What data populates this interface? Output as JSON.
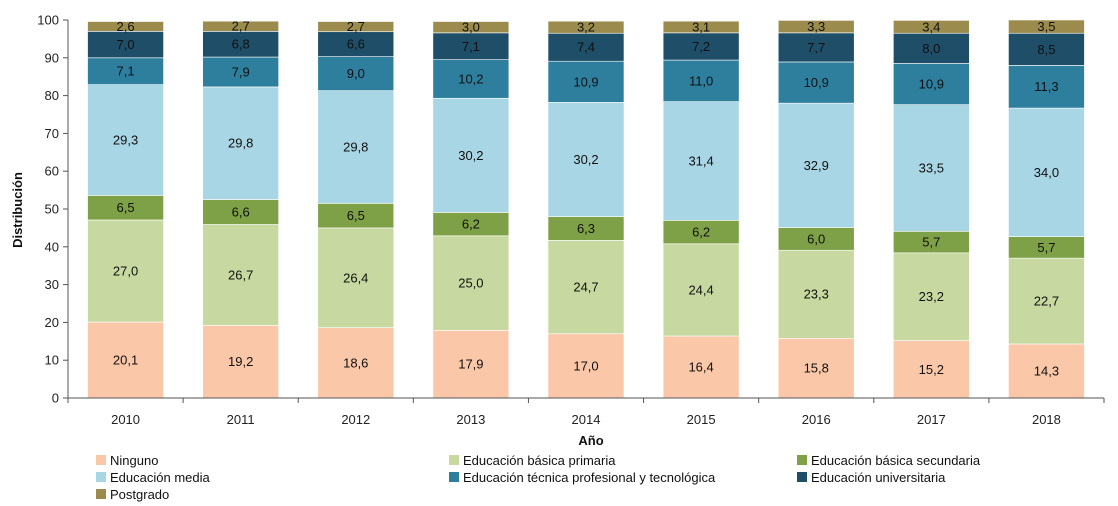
{
  "chart_data": {
    "type": "bar",
    "stacked": true,
    "title": "",
    "xlabel": "Año",
    "ylabel": "Distribución",
    "ylim": [
      0,
      100
    ],
    "yticks": [
      0,
      10,
      20,
      30,
      40,
      50,
      60,
      70,
      80,
      90,
      100
    ],
    "grid": false,
    "legend_position": "bottom",
    "categories": [
      "2010",
      "2011",
      "2012",
      "2013",
      "2014",
      "2015",
      "2016",
      "2017",
      "2018"
    ],
    "series": [
      {
        "name": "Ninguno",
        "color": "#fac8a8",
        "labels": [
          "20,1",
          "19,2",
          "18,6",
          "17,9",
          "17,0",
          "16,4",
          "15,8",
          "15,2",
          "14,3"
        ],
        "values": [
          20.1,
          19.2,
          18.6,
          17.9,
          17.0,
          16.4,
          15.8,
          15.2,
          14.3
        ]
      },
      {
        "name": "Educación básica primaria",
        "color": "#c7d9a0",
        "labels": [
          "27,0",
          "26,7",
          "26,4",
          "25,0",
          "24,7",
          "24,4",
          "23,3",
          "23,2",
          "22,7"
        ],
        "values": [
          27.0,
          26.7,
          26.4,
          25.0,
          24.7,
          24.4,
          23.3,
          23.2,
          22.7
        ]
      },
      {
        "name": "Educación básica secundaria",
        "color": "#7ea046",
        "labels": [
          "6,5",
          "6,6",
          "6,5",
          "6,2",
          "6,3",
          "6,2",
          "6,0",
          "5,7",
          "5,7"
        ],
        "values": [
          6.5,
          6.6,
          6.5,
          6.2,
          6.3,
          6.2,
          6.0,
          5.7,
          5.7
        ]
      },
      {
        "name": "Educación media",
        "color": "#a9d6e4",
        "labels": [
          "29,3",
          "29,8",
          "29,8",
          "30,2",
          "30,2",
          "31,4",
          "32,9",
          "33,5",
          "34,0"
        ],
        "values": [
          29.3,
          29.8,
          29.8,
          30.2,
          30.2,
          31.4,
          32.9,
          33.5,
          34.0
        ]
      },
      {
        "name": "Educación técnica profesional y tecnológica",
        "color": "#2e7f9e",
        "labels": [
          "7,1",
          "7,9",
          "9,0",
          "10,2",
          "10,9",
          "11,0",
          "10,9",
          "10,9",
          "11,3"
        ],
        "values": [
          7.1,
          7.9,
          9.0,
          10.2,
          10.9,
          11.0,
          10.9,
          10.9,
          11.3
        ]
      },
      {
        "name": "Educación universitaria",
        "color": "#1f4e68",
        "labels": [
          "7,0",
          "6,8",
          "6,6",
          "7,1",
          "7,4",
          "7,2",
          "7,7",
          "8,0",
          "8,5"
        ],
        "values": [
          7.0,
          6.8,
          6.6,
          7.1,
          7.4,
          7.2,
          7.7,
          8.0,
          8.5
        ]
      },
      {
        "name": "Postgrado",
        "color": "#9b8c4e",
        "labels": [
          "2,6",
          "2,7",
          "2,7",
          "3,0",
          "3,2",
          "3,1",
          "3,3",
          "3,4",
          "3,5"
        ],
        "values": [
          2.6,
          2.7,
          2.7,
          3.0,
          3.2,
          3.1,
          3.3,
          3.4,
          3.5
        ]
      }
    ]
  }
}
